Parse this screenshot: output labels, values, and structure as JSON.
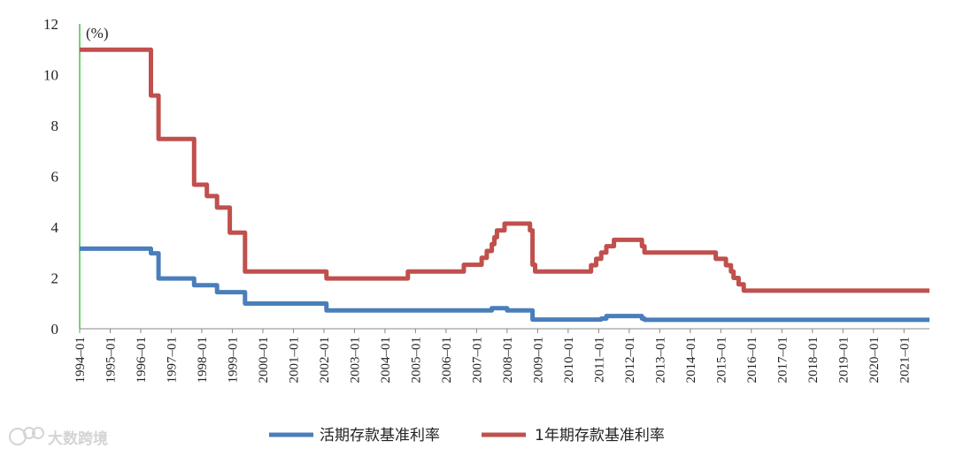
{
  "chart_data": {
    "type": "line",
    "unit_label": "(%)",
    "xlabel": "",
    "ylabel": "",
    "ylim": [
      0,
      12
    ],
    "y_ticks": [
      "0",
      "2",
      "4",
      "6",
      "8",
      "10",
      "12"
    ],
    "x_ticks": [
      "1994–01",
      "1995–01",
      "1996–01",
      "1997–01",
      "1998–01",
      "1999–01",
      "2000–01",
      "2001–01",
      "2002–01",
      "2003–01",
      "2004–01",
      "2005–01",
      "2006–01",
      "2007–01",
      "2008–01",
      "2009–01",
      "2010–01",
      "2011–01",
      "2012–01",
      "2013–01",
      "2014–01",
      "2015–01",
      "2016–01",
      "2017–01",
      "2018–01",
      "2019–01",
      "2020–01",
      "2021–01"
    ],
    "x_range": [
      "1994-01",
      "2021-11"
    ],
    "legend_position": "bottom",
    "series": [
      {
        "name": "活期存款基准利率",
        "color": "#4a7ebb",
        "steps": [
          {
            "date": "1993-07",
            "value": 3.15
          },
          {
            "date": "1996-05",
            "value": 2.97
          },
          {
            "date": "1996-08",
            "value": 1.98
          },
          {
            "date": "1997-10",
            "value": 1.71
          },
          {
            "date": "1998-07",
            "value": 1.44
          },
          {
            "date": "1999-06",
            "value": 0.99
          },
          {
            "date": "2002-02",
            "value": 0.72
          },
          {
            "date": "2007-07",
            "value": 0.81
          },
          {
            "date": "2008-01",
            "value": 0.72
          },
          {
            "date": "2008-11",
            "value": 0.36
          },
          {
            "date": "2011-02",
            "value": 0.4
          },
          {
            "date": "2011-04",
            "value": 0.5
          },
          {
            "date": "2012-06",
            "value": 0.4
          },
          {
            "date": "2012-07",
            "value": 0.35
          }
        ]
      },
      {
        "name": "1年期存款基准利率",
        "color": "#c0504d",
        "steps": [
          {
            "date": "1993-07",
            "value": 10.98
          },
          {
            "date": "1996-05",
            "value": 9.18
          },
          {
            "date": "1996-08",
            "value": 7.47
          },
          {
            "date": "1997-10",
            "value": 5.67
          },
          {
            "date": "1998-03",
            "value": 5.22
          },
          {
            "date": "1998-07",
            "value": 4.77
          },
          {
            "date": "1998-12",
            "value": 3.78
          },
          {
            "date": "1999-06",
            "value": 2.25
          },
          {
            "date": "2002-02",
            "value": 1.98
          },
          {
            "date": "2004-10",
            "value": 2.25
          },
          {
            "date": "2006-08",
            "value": 2.52
          },
          {
            "date": "2007-03",
            "value": 2.79
          },
          {
            "date": "2007-05",
            "value": 3.06
          },
          {
            "date": "2007-07",
            "value": 3.33
          },
          {
            "date": "2007-08",
            "value": 3.6
          },
          {
            "date": "2007-09",
            "value": 3.87
          },
          {
            "date": "2007-12",
            "value": 4.14
          },
          {
            "date": "2008-10",
            "value": 3.87
          },
          {
            "date": "2008-11",
            "value": 2.52
          },
          {
            "date": "2008-12",
            "value": 2.25
          },
          {
            "date": "2010-10",
            "value": 2.5
          },
          {
            "date": "2010-12",
            "value": 2.75
          },
          {
            "date": "2011-02",
            "value": 3.0
          },
          {
            "date": "2011-04",
            "value": 3.25
          },
          {
            "date": "2011-07",
            "value": 3.5
          },
          {
            "date": "2012-06",
            "value": 3.25
          },
          {
            "date": "2012-07",
            "value": 3.0
          },
          {
            "date": "2014-11",
            "value": 2.75
          },
          {
            "date": "2015-03",
            "value": 2.5
          },
          {
            "date": "2015-05",
            "value": 2.25
          },
          {
            "date": "2015-06",
            "value": 2.0
          },
          {
            "date": "2015-08",
            "value": 1.75
          },
          {
            "date": "2015-10",
            "value": 1.5
          }
        ]
      }
    ]
  },
  "watermark": {
    "text": "大数跨境",
    "icon": "brand-logo-icon"
  }
}
